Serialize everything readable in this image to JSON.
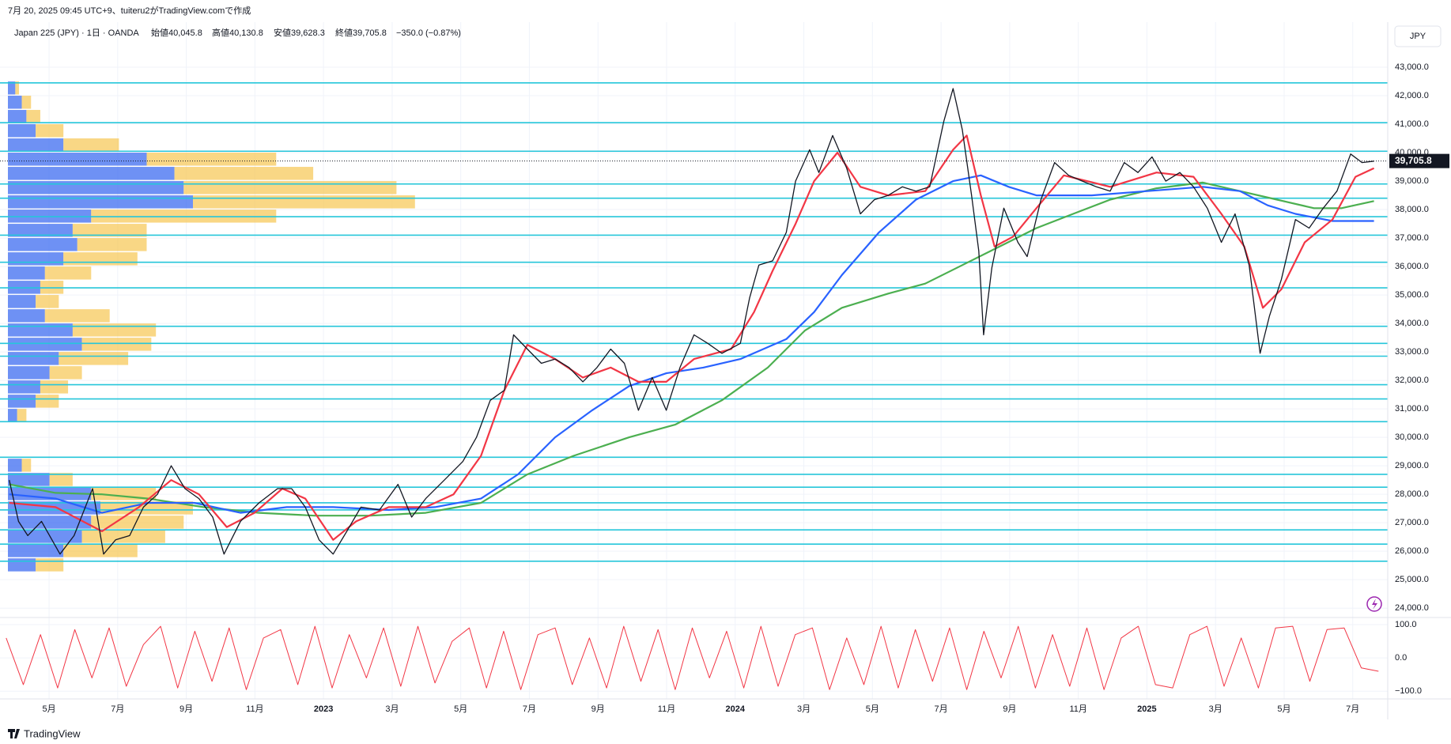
{
  "header": "7月 20, 2025 09:45 UTC+9、tuiteru2がTradingView.comで作成",
  "footer": "TradingView",
  "currency": "JPY",
  "chart_data": [
    {
      "type": "line",
      "title": "Japan 225 (JPY) · 1日 · OANDA",
      "legend": [
        "始値40,045.8",
        "高値40,130.8",
        "安値39,628.3",
        "終値39,705.8",
        "−350.0 (−0.87%)"
      ],
      "xlim": [
        2.57,
        43.02
      ],
      "xticks": [
        {
          "value": 4,
          "label": "5月"
        },
        {
          "value": 6,
          "label": "7月"
        },
        {
          "value": 8,
          "label": "9月"
        },
        {
          "value": 10,
          "label": "11月"
        },
        {
          "value": 12,
          "label": "2023"
        },
        {
          "value": 14,
          "label": "3月"
        },
        {
          "value": 16,
          "label": "5月"
        },
        {
          "value": 18,
          "label": "7月"
        },
        {
          "value": 20,
          "label": "9月"
        },
        {
          "value": 22,
          "label": "11月"
        },
        {
          "value": 24,
          "label": "2024"
        },
        {
          "value": 26,
          "label": "3月"
        },
        {
          "value": 28,
          "label": "5月"
        },
        {
          "value": 30,
          "label": "7月"
        },
        {
          "value": 32,
          "label": "9月"
        },
        {
          "value": 34,
          "label": "11月"
        },
        {
          "value": 36,
          "label": "2025"
        },
        {
          "value": 38,
          "label": "3月"
        },
        {
          "value": 40,
          "label": "5月"
        },
        {
          "value": 42,
          "label": "7月"
        }
      ],
      "ylim": [
        23700,
        44250
      ],
      "yticks": [
        {
          "value": 24000,
          "label": "24,000.0"
        },
        {
          "value": 25000,
          "label": "25,000.0"
        },
        {
          "value": 26000,
          "label": "26,000.0"
        },
        {
          "value": 27000,
          "label": "27,000.0"
        },
        {
          "value": 28000,
          "label": "28,000.0"
        },
        {
          "value": 29000,
          "label": "29,000.0"
        },
        {
          "value": 30000,
          "label": "30,000.0"
        },
        {
          "value": 31000,
          "label": "31,000.0"
        },
        {
          "value": 32000,
          "label": "32,000.0"
        },
        {
          "value": 33000,
          "label": "33,000.0"
        },
        {
          "value": 34000,
          "label": "34,000.0"
        },
        {
          "value": 35000,
          "label": "35,000.0"
        },
        {
          "value": 36000,
          "label": "36,000.0"
        },
        {
          "value": 37000,
          "label": "37,000.0"
        },
        {
          "value": 38000,
          "label": "38,000.0"
        },
        {
          "value": 39000,
          "label": "39,000.0"
        },
        {
          "value": 40000,
          "label": "40,000.0"
        },
        {
          "value": 41000,
          "label": "41,000.0"
        },
        {
          "value": 42000,
          "label": "42,000.0"
        },
        {
          "value": 43000,
          "label": "43,000.0"
        }
      ],
      "grid": true,
      "last_price": {
        "value": 39705.8,
        "label": "39,705.8"
      },
      "levels": {
        "color": "#26c6da",
        "values": [
          42450,
          41050,
          40050,
          38900,
          38400,
          37750,
          37100,
          36150,
          35250,
          33900,
          33300,
          32850,
          31850,
          31350,
          30550,
          29300,
          28700,
          28250,
          27700,
          27450,
          26750,
          26250,
          25650
        ]
      },
      "volume_profile": {
        "colors": [
          "#3d6cf0",
          "#f7c95c"
        ],
        "price": [
          42250,
          41750,
          41250,
          40750,
          40250,
          39750,
          39250,
          38750,
          38250,
          37750,
          37250,
          36750,
          36250,
          35750,
          35250,
          34750,
          34250,
          33750,
          33250,
          32750,
          32250,
          31750,
          31250,
          30750,
          29000,
          28500,
          28000,
          27500,
          27000,
          26500,
          26000,
          25500
        ],
        "up": [
          8,
          15,
          20,
          30,
          60,
          150,
          180,
          190,
          200,
          90,
          70,
          75,
          60,
          40,
          35,
          30,
          40,
          70,
          80,
          55,
          45,
          35,
          30,
          10,
          15,
          45,
          90,
          100,
          90,
          80,
          60,
          30
        ],
        "down": [
          4,
          10,
          15,
          30,
          60,
          140,
          150,
          230,
          240,
          200,
          80,
          75,
          80,
          50,
          25,
          25,
          70,
          90,
          75,
          75,
          35,
          30,
          25,
          10,
          10,
          25,
          70,
          100,
          100,
          90,
          80,
          30
        ]
      },
      "series": [
        {
          "color": "#4caf50",
          "x": [
            2.84,
            4.19,
            5.54,
            6.89,
            8.5,
            10.12,
            11.74,
            13.36,
            14.98,
            16.59,
            17.94,
            19.29,
            20.91,
            22.26,
            23.61,
            24.95,
            26.03,
            27.11,
            28.46,
            29.54,
            30.62,
            31.7,
            32.78,
            33.85,
            34.93,
            36.28,
            37.63,
            38.71,
            39.79,
            40.87,
            41.67,
            42.62
          ],
          "values": [
            28350,
            28050,
            28000,
            27850,
            27550,
            27350,
            27250,
            27250,
            27350,
            27700,
            28700,
            29350,
            30000,
            30450,
            31300,
            32450,
            33750,
            34550,
            35050,
            35400,
            36050,
            36700,
            37350,
            37850,
            38350,
            38750,
            38950,
            38650,
            38350,
            38050,
            38050,
            38300
          ]
        },
        {
          "color": "#2962ff",
          "x": [
            2.84,
            4.19,
            5.54,
            6.89,
            8.23,
            9.58,
            10.93,
            12.28,
            13.9,
            15.25,
            16.59,
            17.67,
            18.75,
            19.83,
            20.91,
            21.99,
            23.07,
            24.15,
            25.49,
            26.3,
            27.11,
            28.19,
            29.27,
            30.35,
            31.16,
            31.97,
            32.78,
            34.39,
            36.01,
            37.63,
            38.71,
            39.52,
            40.33,
            41.41,
            42.62
          ],
          "values": [
            28000,
            27850,
            27350,
            27700,
            27700,
            27350,
            27550,
            27550,
            27450,
            27550,
            27850,
            28700,
            30000,
            30950,
            31800,
            32250,
            32450,
            32750,
            33450,
            34400,
            35700,
            37200,
            38350,
            39000,
            39200,
            38800,
            38500,
            38500,
            38650,
            38800,
            38650,
            38150,
            37850,
            37600,
            37600
          ]
        },
        {
          "color": "#f23645",
          "x": [
            2.84,
            4.19,
            5.54,
            6.62,
            7.56,
            8.37,
            9.18,
            9.99,
            10.8,
            11.47,
            12.28,
            12.95,
            13.9,
            14.98,
            15.79,
            16.59,
            17.27,
            17.94,
            18.75,
            19.56,
            20.37,
            21.18,
            21.99,
            22.8,
            23.88,
            24.55,
            25.09,
            25.76,
            26.3,
            26.98,
            27.65,
            28.46,
            29.54,
            30.35,
            30.75,
            31.16,
            31.56,
            32.1,
            32.78,
            33.58,
            34.93,
            36.28,
            37.36,
            38.17,
            38.84,
            39.38,
            39.92,
            40.6,
            41.41,
            42.08,
            42.62
          ],
          "values": [
            27700,
            27550,
            26700,
            27550,
            28500,
            28000,
            26850,
            27350,
            28200,
            27850,
            26400,
            27050,
            27550,
            27550,
            28000,
            29350,
            31650,
            33250,
            32750,
            32100,
            32450,
            31950,
            31950,
            32750,
            33100,
            34400,
            35850,
            37500,
            39000,
            40000,
            38800,
            38500,
            38650,
            40100,
            40600,
            38500,
            36700,
            37050,
            38050,
            39200,
            38800,
            39300,
            39150,
            37850,
            36700,
            34550,
            35200,
            36850,
            37650,
            39150,
            39450
          ]
        },
        {
          "color": "#131722",
          "x": [
            2.84,
            3.11,
            3.38,
            3.78,
            4.32,
            4.73,
            5.27,
            5.59,
            5.94,
            6.35,
            6.75,
            7.16,
            7.56,
            7.96,
            8.37,
            8.77,
            9.1,
            9.58,
            10.12,
            10.66,
            11.07,
            11.47,
            11.87,
            12.28,
            12.68,
            13.09,
            13.63,
            14.17,
            14.57,
            14.98,
            15.52,
            16.06,
            16.46,
            16.86,
            17.27,
            17.54,
            17.94,
            18.35,
            18.75,
            19.16,
            19.56,
            19.97,
            20.37,
            20.77,
            21.18,
            21.58,
            21.99,
            22.39,
            22.8,
            23.2,
            23.61,
            24.15,
            24.42,
            24.69,
            25.09,
            25.49,
            25.76,
            26.17,
            26.44,
            26.84,
            27.25,
            27.65,
            28.06,
            28.46,
            28.87,
            29.27,
            29.67,
            30.08,
            30.35,
            30.62,
            30.89,
            31.1,
            31.24,
            31.48,
            31.83,
            32.24,
            32.51,
            32.91,
            33.31,
            33.72,
            34.12,
            34.53,
            34.93,
            35.34,
            35.74,
            36.15,
            36.55,
            36.96,
            37.36,
            37.76,
            38.17,
            38.57,
            38.98,
            39.3,
            39.57,
            39.92,
            40.33,
            40.73,
            41.14,
            41.54,
            41.94,
            42.27,
            42.62
          ],
          "values": [
            28500,
            27050,
            26550,
            27050,
            25900,
            26550,
            28200,
            25900,
            26400,
            26550,
            27550,
            28000,
            29000,
            28200,
            27850,
            27200,
            25900,
            27050,
            27700,
            28200,
            28200,
            27550,
            26400,
            25900,
            26700,
            27550,
            27450,
            28350,
            27200,
            27850,
            28500,
            29150,
            30000,
            31300,
            31650,
            33600,
            33100,
            32600,
            32750,
            32450,
            31950,
            32450,
            33100,
            32600,
            30950,
            32100,
            30950,
            32450,
            33600,
            33300,
            32950,
            33300,
            34900,
            36050,
            36200,
            37200,
            39000,
            40100,
            39300,
            40600,
            39450,
            37850,
            38350,
            38500,
            38800,
            38650,
            38800,
            41100,
            42250,
            40800,
            38500,
            36550,
            33600,
            35950,
            38050,
            36850,
            36350,
            38350,
            39650,
            39200,
            39000,
            38800,
            38650,
            39650,
            39300,
            39850,
            39000,
            39300,
            38800,
            38050,
            36850,
            37850,
            36050,
            32950,
            34250,
            35550,
            37650,
            37350,
            38050,
            38650,
            39950,
            39650,
            39700
          ]
        }
      ]
    },
    {
      "type": "line",
      "ylim": [
        -123,
        119
      ],
      "yticks": [
        {
          "value": 100,
          "label": "100.0"
        },
        {
          "value": 0,
          "label": "0.0"
        },
        {
          "value": -100,
          "label": "−100.0"
        }
      ],
      "series": [
        {
          "color": "#f23645",
          "x": [
            2.75,
            3.25,
            3.75,
            4.25,
            4.75,
            5.25,
            5.75,
            6.25,
            6.75,
            7.25,
            7.75,
            8.25,
            8.75,
            9.25,
            9.75,
            10.25,
            10.75,
            11.25,
            11.75,
            12.25,
            12.75,
            13.25,
            13.75,
            14.25,
            14.75,
            15.25,
            15.75,
            16.25,
            16.75,
            17.25,
            17.75,
            18.25,
            18.75,
            19.25,
            19.75,
            20.25,
            20.75,
            21.25,
            21.75,
            22.25,
            22.75,
            23.25,
            23.75,
            24.25,
            24.75,
            25.25,
            25.75,
            26.25,
            26.75,
            27.25,
            27.75,
            28.25,
            28.75,
            29.25,
            29.75,
            30.25,
            30.75,
            31.25,
            31.75,
            32.25,
            32.75,
            33.25,
            33.75,
            34.25,
            34.75,
            35.25,
            35.75,
            36.25,
            36.75,
            37.25,
            37.75,
            38.25,
            38.75,
            39.25,
            39.75,
            40.25,
            40.75,
            41.25,
            41.75,
            42.25,
            42.75
          ],
          "values": [
            60,
            -80,
            70,
            -90,
            85,
            -60,
            90,
            -85,
            40,
            95,
            -90,
            80,
            -70,
            90,
            -95,
            60,
            85,
            -80,
            95,
            -90,
            70,
            -60,
            90,
            -85,
            95,
            -75,
            50,
            90,
            -90,
            80,
            -95,
            70,
            90,
            -80,
            60,
            -90,
            95,
            -70,
            85,
            -95,
            90,
            -60,
            80,
            -90,
            95,
            -85,
            70,
            90,
            -95,
            60,
            -80,
            95,
            -90,
            85,
            -70,
            90,
            -95,
            80,
            -60,
            95,
            -90,
            70,
            -85,
            90,
            -95,
            60,
            95,
            -80,
            -90,
            70,
            95,
            -85,
            60,
            -90,
            90,
            95,
            -70,
            85,
            90,
            -30,
            -40
          ]
        }
      ]
    }
  ]
}
